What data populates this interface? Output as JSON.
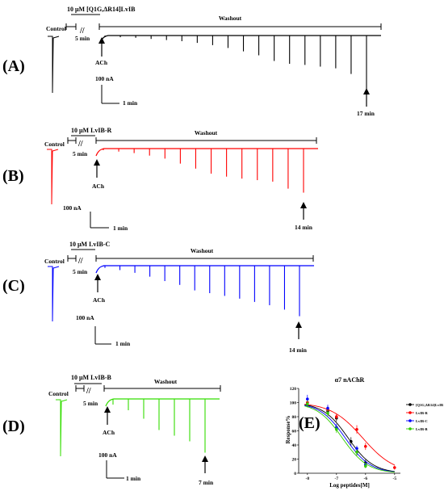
{
  "panels": [
    {
      "id": "A",
      "label": "(A)",
      "color": "#000000",
      "treatment": "10 μM [Q1G,ΔR14]LvIB",
      "washout": "Washout",
      "control": "Control",
      "break_mark": "//",
      "wait": "5 min",
      "agonist": "ACh",
      "scale_current": "100 nA",
      "scale_time": "1 min",
      "end_time": "17 min",
      "recovery": [
        0.02,
        0.03,
        0.04,
        0.06,
        0.08,
        0.1,
        0.13,
        0.17,
        0.22,
        0.28,
        0.35,
        0.45,
        0.5,
        0.52,
        0.55,
        0.58,
        0.68,
        0.95
      ]
    },
    {
      "id": "B",
      "label": "(B)",
      "color": "#ff0000",
      "treatment": "10 μM LvIB-R",
      "washout": "Washout",
      "control": "Control",
      "break_mark": "//",
      "wait": "5 min",
      "agonist": "ACh",
      "scale_current": "100 nA",
      "scale_time": "1 min",
      "end_time": "14 min",
      "recovery": [
        0.03,
        0.06,
        0.09,
        0.14,
        0.2,
        0.3,
        0.4,
        0.5,
        0.56,
        0.6,
        0.63,
        0.66,
        0.8,
        0.88
      ]
    },
    {
      "id": "C",
      "label": "(C)",
      "color": "#0000ff",
      "treatment": "10 μM LvIB-C",
      "washout": "Washout",
      "control": "Control",
      "break_mark": "//",
      "wait": "5 min",
      "agonist": "ACh",
      "scale_current": "100 nA",
      "scale_time": "1 min",
      "end_time": "14 min",
      "recovery": [
        0.04,
        0.08,
        0.13,
        0.2,
        0.28,
        0.35,
        0.45,
        0.5,
        0.55,
        0.6,
        0.66,
        0.72,
        0.8,
        0.92
      ]
    },
    {
      "id": "D",
      "label": "(D)",
      "color": "#33dd00",
      "treatment": "10 μM LvIB-B",
      "washout": "Washout",
      "control": "Control",
      "break_mark": "//",
      "wait": "5 min",
      "agonist": "ACh",
      "scale_current": "100 nA",
      "scale_time": "1 min",
      "end_time": "7 min",
      "recovery": [
        0.1,
        0.2,
        0.35,
        0.55,
        0.65,
        0.75,
        0.95
      ]
    }
  ],
  "panel_e": {
    "label": "(E)",
    "chart_data": {
      "type": "line",
      "title": "α7 nAChR",
      "xlabel": "Log peptides[M]",
      "ylabel": "Response%",
      "xlim": [
        -8.3,
        -4.8
      ],
      "ylim": [
        0,
        120
      ],
      "xticks": [
        "-8",
        "-7",
        "-6",
        "-5"
      ],
      "yticks": [
        "0",
        "20",
        "40",
        "60",
        "80",
        "100",
        "120"
      ],
      "legend_position": "right",
      "series": [
        {
          "name": "[Q1G,ΔR14]LvIB",
          "color": "#000000",
          "marker": "circle",
          "x": [
            -8,
            -7.3,
            -7,
            -6.5,
            -6.3,
            -6
          ],
          "y": [
            100,
            88,
            78,
            45,
            30,
            15
          ],
          "err": [
            6,
            5,
            5,
            6,
            5,
            4
          ],
          "ic50_log": -6.6,
          "hill": 1.0
        },
        {
          "name": "LvIB-R",
          "color": "#ff0000",
          "marker": "circle",
          "x": [
            -8,
            -7.3,
            -7,
            -6.3,
            -6,
            -5
          ],
          "y": [
            100,
            90,
            80,
            62,
            38,
            8
          ],
          "err": [
            5,
            5,
            4,
            6,
            5,
            3
          ],
          "ic50_log": -6.1,
          "hill": 0.8
        },
        {
          "name": "LvIB-C",
          "color": "#0000ff",
          "marker": "circle",
          "x": [
            -8,
            -7.3,
            -7,
            -6.3,
            -6
          ],
          "y": [
            105,
            92,
            65,
            35,
            12
          ],
          "err": [
            6,
            5,
            5,
            4,
            3
          ],
          "ic50_log": -6.7,
          "hill": 1.0
        },
        {
          "name": "LvIB-B",
          "color": "#33cc00",
          "marker": "circle",
          "x": [
            -8,
            -7.3,
            -7,
            -6.3,
            -6
          ],
          "y": [
            98,
            85,
            62,
            30,
            10
          ],
          "err": [
            5,
            5,
            5,
            4,
            3
          ],
          "ic50_log": -6.8,
          "hill": 1.0
        }
      ]
    }
  }
}
